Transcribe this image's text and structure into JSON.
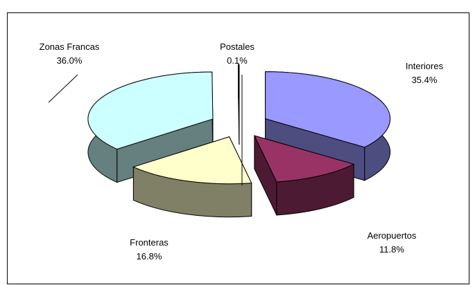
{
  "chart_data": {
    "type": "pie3d",
    "categories": [
      "Interiores",
      "Aeropuertos",
      "Fronteras",
      "Zonas Francas",
      "Postales"
    ],
    "values": [
      35.4,
      11.8,
      16.8,
      36.0,
      0.1
    ],
    "value_labels": [
      "35.4%",
      "11.8%",
      "16.8%",
      "36.0%",
      "0.1%"
    ],
    "colors": [
      "#9999ff",
      "#993366",
      "#ffffcc",
      "#ccffff",
      "#ffffff"
    ]
  }
}
